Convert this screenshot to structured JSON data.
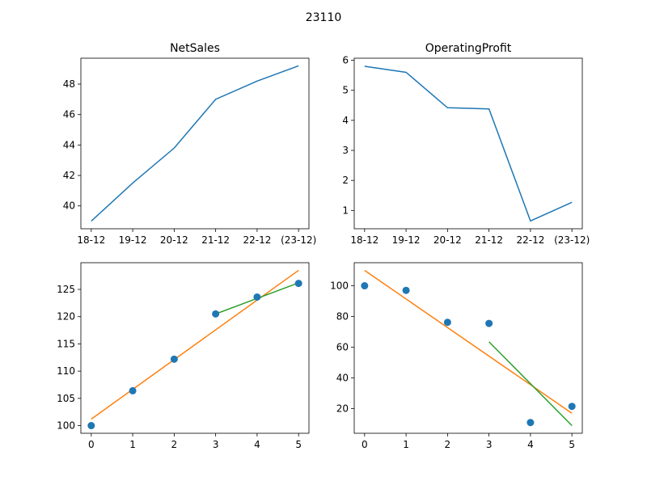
{
  "figure": {
    "suptitle": "23110"
  },
  "chart_data": [
    {
      "type": "line",
      "title": "NetSales",
      "categories": [
        "18-12",
        "19-12",
        "20-12",
        "21-12",
        "22-12",
        "(23-12)"
      ],
      "series": [
        {
          "values": [
            39.0,
            41.5,
            43.8,
            47.0,
            48.2,
            49.2
          ],
          "color": "#1f77b4"
        }
      ],
      "ylim": [
        38.5,
        49.7
      ],
      "yticks": [
        40,
        42,
        44,
        46,
        48
      ],
      "xlabel": "",
      "ylabel": "",
      "grid": false
    },
    {
      "type": "line",
      "title": "OperatingProfit",
      "categories": [
        "18-12",
        "19-12",
        "20-12",
        "21-12",
        "22-12",
        "(23-12)"
      ],
      "series": [
        {
          "values": [
            5.8,
            5.6,
            4.42,
            4.38,
            0.65,
            1.27
          ],
          "color": "#1f77b4"
        }
      ],
      "ylim": [
        0.39,
        6.07
      ],
      "yticks": [
        1,
        2,
        3,
        4,
        5,
        6
      ],
      "xlabel": "",
      "ylabel": "",
      "grid": false
    },
    {
      "type": "scatter",
      "title": "",
      "points": {
        "x": [
          0,
          1,
          2,
          3,
          4,
          5
        ],
        "y": [
          100.0,
          106.4,
          112.2,
          120.5,
          123.6,
          126.1
        ],
        "color": "#1f77b4"
      },
      "lines": [
        {
          "x": [
            0,
            5
          ],
          "y": [
            101.2,
            128.5
          ],
          "color": "#ff7f0e"
        },
        {
          "x": [
            3,
            5
          ],
          "y": [
            120.5,
            126.2
          ],
          "color": "#2ca02c"
        }
      ],
      "xlim": [
        -0.25,
        5.25
      ],
      "ylim": [
        98.6,
        129.9
      ],
      "xticks": [
        0,
        1,
        2,
        3,
        4,
        5
      ],
      "yticks": [
        100,
        105,
        110,
        115,
        120,
        125
      ],
      "xlabel": "",
      "ylabel": "",
      "grid": false
    },
    {
      "type": "scatter",
      "title": "",
      "points": {
        "x": [
          0,
          1,
          2,
          3,
          4,
          5
        ],
        "y": [
          100.0,
          97.0,
          76.2,
          75.5,
          11.0,
          21.5
        ],
        "color": "#1f77b4"
      },
      "lines": [
        {
          "x": [
            0,
            5
          ],
          "y": [
            110.0,
            17.0
          ],
          "color": "#ff7f0e"
        },
        {
          "x": [
            3,
            5
          ],
          "y": [
            63.5,
            9.0
          ],
          "color": "#2ca02c"
        }
      ],
      "xlim": [
        -0.25,
        5.25
      ],
      "ylim": [
        4.0,
        115.0
      ],
      "xticks": [
        0,
        1,
        2,
        3,
        4,
        5
      ],
      "yticks": [
        20,
        40,
        60,
        80,
        100
      ],
      "xlabel": "",
      "ylabel": "",
      "grid": false
    }
  ]
}
